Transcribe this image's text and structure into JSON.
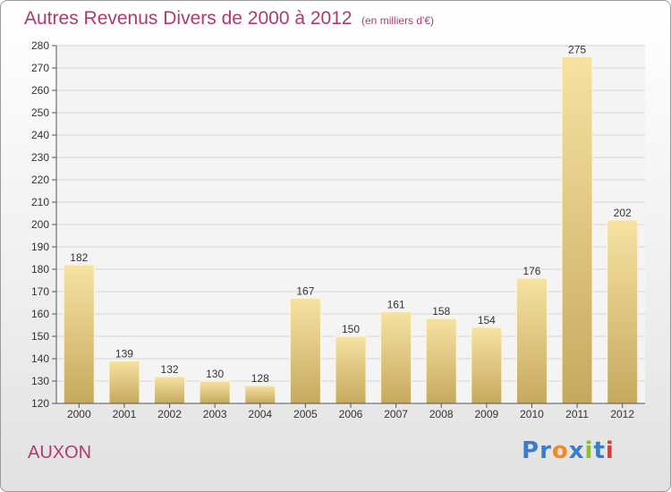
{
  "header": {
    "title": "Autres Revenus Divers de 2000 à 2012",
    "unit": "(en milliers d'€)"
  },
  "commune": "AUXON",
  "logo": {
    "text": "Proxiti",
    "letters": [
      "P",
      "r",
      "o",
      "x",
      "i",
      "t",
      "i"
    ],
    "colors": [
      "#3d7cc9",
      "#3d7cc9",
      "#f08a24",
      "#3d7cc9",
      "#8bbf2a",
      "#3d7cc9",
      "#e23a3a"
    ]
  },
  "colors": {
    "accent": "#b03a6e",
    "bar_light": "#f7e2a2",
    "bar_dark": "#c6a95f"
  },
  "chart_data": {
    "type": "bar",
    "categories": [
      "2000",
      "2001",
      "2002",
      "2003",
      "2004",
      "2005",
      "2006",
      "2007",
      "2008",
      "2009",
      "2010",
      "2011",
      "2012"
    ],
    "values": [
      182,
      139,
      132,
      130,
      128,
      167,
      150,
      161,
      158,
      154,
      176,
      275,
      202
    ],
    "data_labels": [
      "182",
      "139",
      "132",
      "130",
      "128",
      "167",
      "150",
      "161",
      "158",
      "154",
      "176",
      "275",
      "202"
    ],
    "ylim": [
      120,
      280
    ],
    "yticks": [
      120,
      130,
      140,
      150,
      160,
      170,
      180,
      190,
      200,
      210,
      220,
      230,
      240,
      250,
      260,
      270,
      280
    ],
    "grid": true
  }
}
